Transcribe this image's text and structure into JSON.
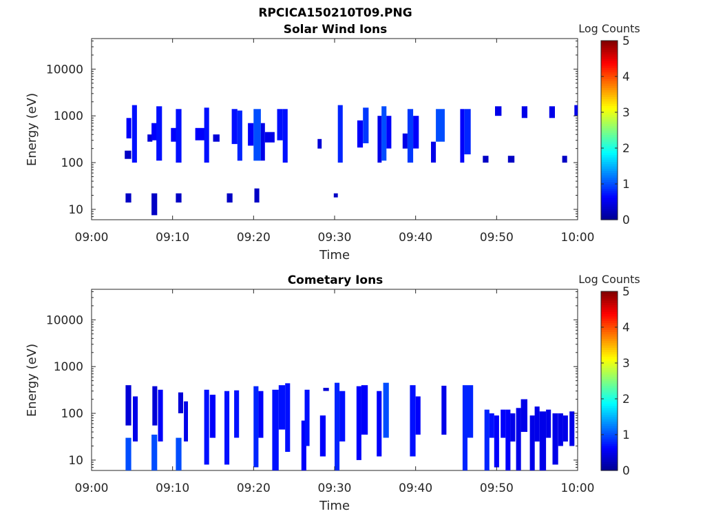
{
  "figure_title": "RPCICA150210T09.PNG",
  "colormap": [
    "#00008f",
    "#0000ff",
    "#0080ff",
    "#00ffff",
    "#80ff80",
    "#ffff00",
    "#ff8000",
    "#ff0000",
    "#800000"
  ],
  "chart_data": [
    {
      "type": "heatmap",
      "title": "Solar Wind Ions",
      "xlabel": "Time",
      "ylabel": "Energy (eV)",
      "yscale": "log",
      "ylim": [
        6,
        45000
      ],
      "x_ticks": [
        "09:00",
        "09:10",
        "09:20",
        "09:30",
        "09:40",
        "09:50",
        "10:00"
      ],
      "y_ticks": [
        "10",
        "100",
        "1000",
        "10000"
      ],
      "colorbar": {
        "label": "Log Counts",
        "ticks": [
          "0",
          "1",
          "2",
          "3",
          "4",
          "5"
        ],
        "range": [
          0,
          5
        ]
      },
      "time_range_min": [
        0,
        60
      ],
      "cells": [
        [
          4.3,
          4.9,
          330,
          900,
          0.6
        ],
        [
          4.1,
          4.9,
          120,
          180,
          0.3
        ],
        [
          4.2,
          4.9,
          14,
          22,
          0.3
        ],
        [
          5.0,
          5.6,
          100,
          1700,
          0.7
        ],
        [
          6.9,
          7.5,
          280,
          400,
          0.4
        ],
        [
          7.4,
          8.1,
          300,
          700,
          0.6
        ],
        [
          7.4,
          8.1,
          7.5,
          22,
          0.3
        ],
        [
          8.0,
          8.7,
          110,
          1600,
          0.7
        ],
        [
          9.8,
          10.5,
          280,
          550,
          0.6
        ],
        [
          10.4,
          11.1,
          100,
          1400,
          0.7
        ],
        [
          10.4,
          11.1,
          14,
          22,
          0.3
        ],
        [
          12.8,
          14.0,
          300,
          550,
          0.6
        ],
        [
          13.9,
          14.5,
          100,
          1500,
          0.7
        ],
        [
          15.0,
          15.8,
          280,
          400,
          0.4
        ],
        [
          16.7,
          17.4,
          14,
          22,
          0.3
        ],
        [
          17.3,
          18.0,
          250,
          1400,
          0.7
        ],
        [
          18.0,
          18.6,
          110,
          1300,
          0.8
        ],
        [
          19.3,
          20.0,
          230,
          700,
          0.6
        ],
        [
          20.0,
          20.9,
          110,
          1400,
          1.0
        ],
        [
          20.1,
          20.7,
          14,
          28,
          0.3
        ],
        [
          20.9,
          21.4,
          110,
          700,
          0.5
        ],
        [
          21.4,
          22.6,
          270,
          450,
          0.5
        ],
        [
          22.9,
          23.6,
          300,
          1400,
          0.7
        ],
        [
          23.6,
          24.2,
          100,
          1400,
          0.7
        ],
        [
          27.9,
          28.4,
          200,
          320,
          0.4
        ],
        [
          29.9,
          30.4,
          18,
          22,
          0.3
        ],
        [
          30.4,
          31.0,
          100,
          1700,
          0.8
        ],
        [
          32.8,
          33.5,
          210,
          800,
          0.6
        ],
        [
          33.5,
          34.2,
          260,
          1500,
          0.9
        ],
        [
          35.3,
          35.8,
          100,
          1000,
          0.5
        ],
        [
          35.8,
          36.4,
          110,
          1600,
          1.0
        ],
        [
          36.4,
          37.0,
          200,
          1000,
          0.6
        ],
        [
          38.4,
          39.0,
          200,
          420,
          0.5
        ],
        [
          39.0,
          39.7,
          100,
          1400,
          0.9
        ],
        [
          39.7,
          40.4,
          200,
          1000,
          0.6
        ],
        [
          41.9,
          42.5,
          100,
          280,
          0.5
        ],
        [
          42.5,
          43.6,
          280,
          1400,
          1.0
        ],
        [
          45.5,
          46.0,
          100,
          1400,
          0.6
        ],
        [
          46.0,
          46.8,
          150,
          1400,
          0.8
        ],
        [
          48.3,
          49.0,
          100,
          140,
          0.3
        ],
        [
          49.8,
          50.6,
          1000,
          1600,
          0.5
        ],
        [
          51.4,
          52.2,
          100,
          140,
          0.3
        ],
        [
          53.1,
          53.8,
          900,
          1600,
          0.5
        ],
        [
          56.5,
          57.2,
          900,
          1600,
          0.5
        ],
        [
          58.1,
          58.7,
          100,
          140,
          0.3
        ],
        [
          59.6,
          60.0,
          1000,
          1700,
          0.5
        ]
      ]
    },
    {
      "type": "heatmap",
      "title": "Cometary Ions",
      "xlabel": "Time",
      "ylabel": "Energy (eV)",
      "yscale": "log",
      "ylim": [
        6,
        45000
      ],
      "x_ticks": [
        "09:00",
        "09:10",
        "09:20",
        "09:30",
        "09:40",
        "09:50",
        "10:00"
      ],
      "y_ticks": [
        "10",
        "100",
        "1000",
        "10000"
      ],
      "colorbar": {
        "label": "Log Counts",
        "ticks": [
          "0",
          "1",
          "2",
          "3",
          "4",
          "5"
        ],
        "range": [
          0,
          5
        ]
      },
      "time_range_min": [
        0,
        60
      ],
      "cells": [
        [
          4.2,
          4.9,
          6,
          30,
          1.0
        ],
        [
          4.2,
          4.9,
          55,
          400,
          0.4
        ],
        [
          5.1,
          5.7,
          25,
          230,
          0.5
        ],
        [
          7.4,
          8.1,
          6,
          35,
          1.0
        ],
        [
          7.5,
          8.1,
          55,
          380,
          0.4
        ],
        [
          8.2,
          8.8,
          25,
          320,
          0.6
        ],
        [
          10.4,
          11.1,
          6,
          30,
          1.0
        ],
        [
          10.7,
          11.3,
          100,
          280,
          0.4
        ],
        [
          11.4,
          11.9,
          25,
          180,
          0.5
        ],
        [
          13.9,
          14.5,
          8,
          320,
          0.7
        ],
        [
          14.6,
          15.3,
          30,
          250,
          0.6
        ],
        [
          16.4,
          17.0,
          8,
          300,
          0.7
        ],
        [
          17.6,
          18.2,
          30,
          310,
          0.7
        ],
        [
          20.0,
          20.6,
          7,
          380,
          0.8
        ],
        [
          20.6,
          21.2,
          30,
          300,
          0.6
        ],
        [
          22.3,
          23.1,
          6,
          320,
          0.7
        ],
        [
          23.1,
          23.9,
          45,
          400,
          0.7
        ],
        [
          23.9,
          24.5,
          15,
          440,
          0.7
        ],
        [
          25.9,
          26.5,
          6,
          70,
          0.6
        ],
        [
          26.3,
          26.9,
          20,
          320,
          0.7
        ],
        [
          28.2,
          28.9,
          12,
          90,
          0.6
        ],
        [
          28.6,
          29.3,
          300,
          350,
          0.4
        ],
        [
          30.0,
          30.6,
          6,
          450,
          0.8
        ],
        [
          30.6,
          31.3,
          25,
          300,
          0.7
        ],
        [
          32.7,
          33.3,
          10,
          380,
          0.6
        ],
        [
          33.3,
          34.1,
          35,
          400,
          0.6
        ],
        [
          35.2,
          35.8,
          12,
          300,
          0.6
        ],
        [
          36.0,
          36.7,
          30,
          450,
          1.0
        ],
        [
          39.3,
          40.0,
          12,
          400,
          0.7
        ],
        [
          40.0,
          40.6,
          35,
          230,
          0.6
        ],
        [
          43.2,
          43.8,
          35,
          390,
          0.5
        ],
        [
          45.8,
          46.4,
          6,
          400,
          0.8
        ],
        [
          46.4,
          47.1,
          30,
          400,
          0.8
        ],
        [
          48.5,
          49.1,
          6,
          120,
          0.8
        ],
        [
          49.1,
          49.7,
          30,
          100,
          0.7
        ],
        [
          49.7,
          50.3,
          7,
          90,
          0.6
        ],
        [
          50.5,
          51.1,
          30,
          120,
          0.6
        ],
        [
          51.1,
          51.7,
          6,
          120,
          0.6
        ],
        [
          51.7,
          52.3,
          25,
          100,
          0.5
        ],
        [
          52.4,
          53.0,
          6,
          130,
          0.5
        ],
        [
          53.0,
          53.8,
          40,
          200,
          0.5
        ],
        [
          54.1,
          54.7,
          6,
          90,
          0.5
        ],
        [
          54.7,
          55.3,
          25,
          140,
          0.5
        ],
        [
          55.3,
          56.1,
          6,
          110,
          0.5
        ],
        [
          56.1,
          56.7,
          30,
          120,
          0.5
        ],
        [
          56.9,
          57.6,
          8,
          100,
          0.5
        ],
        [
          57.6,
          58.2,
          20,
          100,
          0.5
        ],
        [
          58.2,
          58.8,
          25,
          90,
          0.5
        ],
        [
          59.0,
          59.6,
          20,
          110,
          0.5
        ]
      ]
    }
  ]
}
